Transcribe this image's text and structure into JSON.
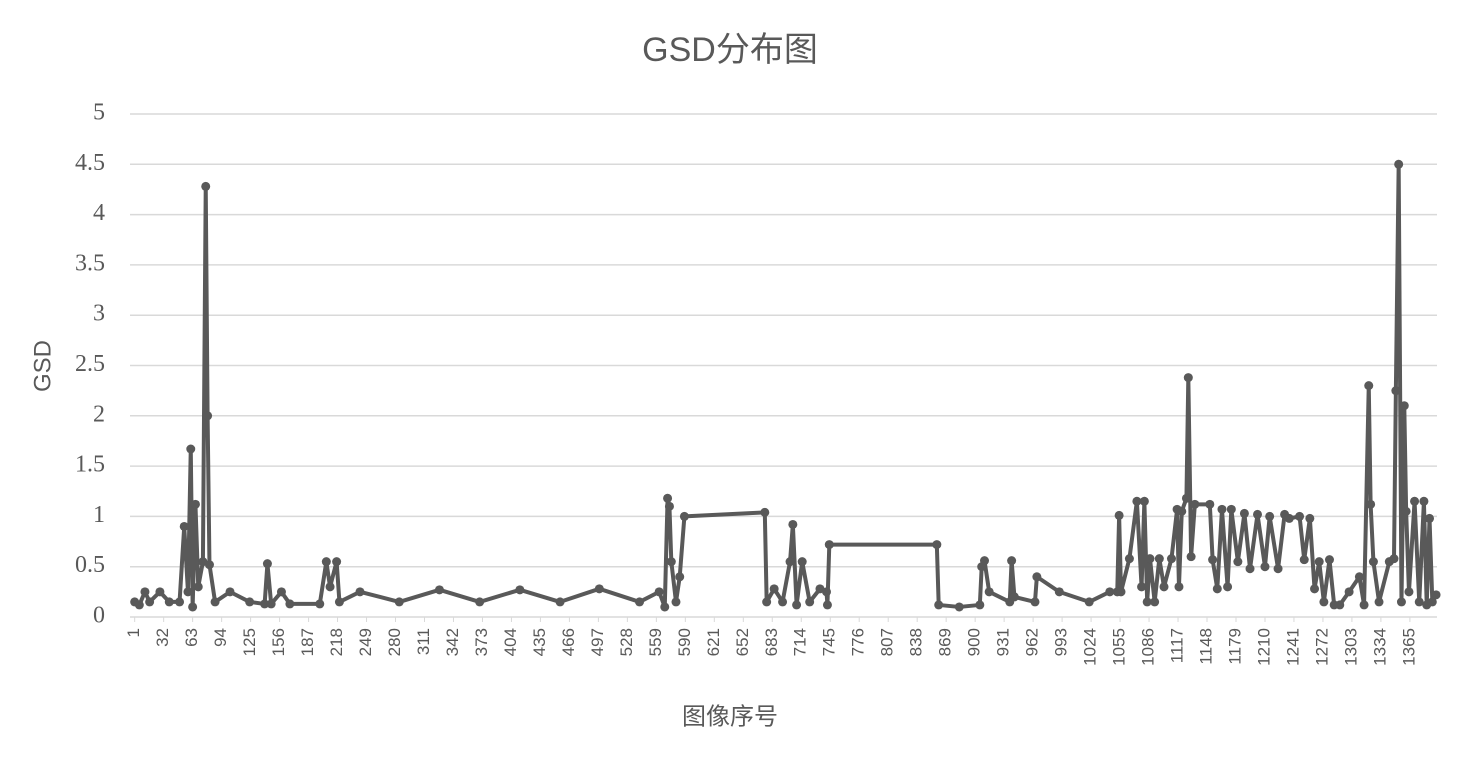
{
  "chart_data": {
    "type": "line",
    "title": "GSD分布图",
    "x_label": "图像序号",
    "y_label": "GSD",
    "xlim": [
      -4,
      1394
    ],
    "xticks": [
      1,
      32,
      63,
      94,
      125,
      156,
      187,
      218,
      249,
      280,
      311,
      342,
      373,
      404,
      435,
      466,
      497,
      528,
      559,
      590,
      621,
      652,
      683,
      714,
      745,
      776,
      807,
      838,
      869,
      900,
      931,
      962,
      993,
      1024,
      1055,
      1086,
      1117,
      1148,
      1179,
      1210,
      1241,
      1272,
      1303,
      1334,
      1365
    ],
    "ylim": [
      0,
      5
    ],
    "yticks": [
      0,
      0.5,
      1,
      1.5,
      2,
      2.5,
      3,
      3.5,
      4,
      4.5,
      5
    ],
    "grid": true,
    "series": [
      {
        "name": "GSD",
        "color": "#595959",
        "x": [
          1,
          6,
          12,
          17,
          28,
          38,
          49,
          54,
          58,
          61,
          63,
          66,
          69,
          74,
          77,
          79,
          81,
          87,
          103,
          124,
          140,
          143,
          147,
          158,
          167,
          199,
          206,
          210,
          217,
          220,
          242,
          284,
          327,
          370,
          413,
          456,
          498,
          541,
          562,
          568,
          571,
          573,
          575,
          580,
          584,
          589,
          675,
          677,
          685,
          694,
          702,
          705,
          709,
          715,
          723,
          734,
          741,
          742,
          744,
          859,
          861,
          883,
          905,
          907,
          910,
          915,
          937,
          939,
          942,
          964,
          966,
          990,
          1022,
          1044,
          1052,
          1054,
          1056,
          1065,
          1073,
          1078,
          1081,
          1084,
          1087,
          1092,
          1097,
          1102,
          1110,
          1116,
          1118,
          1121,
          1126,
          1128,
          1131,
          1135,
          1151,
          1154,
          1159,
          1164,
          1170,
          1174,
          1181,
          1188,
          1194,
          1202,
          1210,
          1215,
          1224,
          1231,
          1236,
          1247,
          1252,
          1258,
          1263,
          1268,
          1273,
          1279,
          1284,
          1290,
          1300,
          1311,
          1316,
          1321,
          1323,
          1326,
          1332,
          1343,
          1348,
          1350,
          1353,
          1356,
          1359,
          1361,
          1364,
          1370,
          1375,
          1380,
          1383,
          1386,
          1389,
          1393
        ],
        "values": [
          0.15,
          0.12,
          0.25,
          0.15,
          0.25,
          0.15,
          0.15,
          0.9,
          0.25,
          1.67,
          0.1,
          1.12,
          0.3,
          0.55,
          4.28,
          2.0,
          0.52,
          0.15,
          0.25,
          0.15,
          0.13,
          0.53,
          0.13,
          0.25,
          0.13,
          0.13,
          0.55,
          0.3,
          0.55,
          0.15,
          0.25,
          0.15,
          0.27,
          0.15,
          0.27,
          0.15,
          0.28,
          0.15,
          0.25,
          0.1,
          1.18,
          1.1,
          0.55,
          0.15,
          0.4,
          1.0,
          1.04,
          0.15,
          0.28,
          0.15,
          0.55,
          0.92,
          0.12,
          0.55,
          0.15,
          0.28,
          0.25,
          0.12,
          0.72,
          0.72,
          0.12,
          0.1,
          0.12,
          0.5,
          0.56,
          0.25,
          0.15,
          0.56,
          0.2,
          0.15,
          0.4,
          0.25,
          0.15,
          0.25,
          0.25,
          1.01,
          0.25,
          0.58,
          1.15,
          0.3,
          1.15,
          0.15,
          0.58,
          0.15,
          0.58,
          0.3,
          0.58,
          1.07,
          0.3,
          1.05,
          1.18,
          2.38,
          0.6,
          1.12,
          1.12,
          0.57,
          0.28,
          1.07,
          0.3,
          1.07,
          0.55,
          1.03,
          0.48,
          1.02,
          0.5,
          1.0,
          0.48,
          1.02,
          0.98,
          1.0,
          0.57,
          0.98,
          0.28,
          0.55,
          0.15,
          0.57,
          0.12,
          0.12,
          0.25,
          0.4,
          0.12,
          2.3,
          1.12,
          0.55,
          0.15,
          0.55,
          0.58,
          2.25,
          4.5,
          0.15,
          2.1,
          1.05,
          0.25,
          1.15,
          0.15,
          1.15,
          0.12,
          0.98,
          0.15,
          0.22
        ]
      }
    ]
  }
}
